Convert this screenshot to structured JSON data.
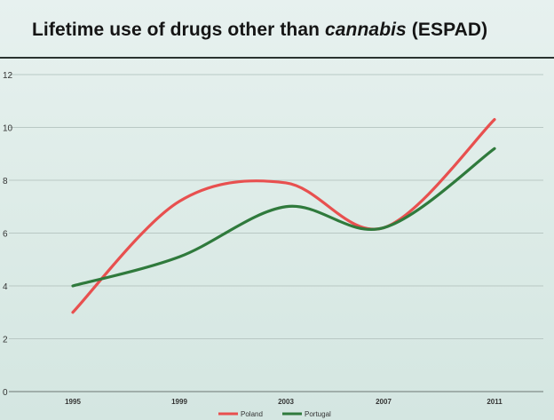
{
  "title": {
    "prefix": "Lifetime use of drugs other than ",
    "italic": "cannabis",
    "suffix": " (ESPAD)"
  },
  "chart_data": {
    "type": "line",
    "title": "Lifetime use of drugs other than cannabis (ESPAD)",
    "xlabel": "",
    "ylabel": "",
    "categories": [
      "1995",
      "1999",
      "2003",
      "2007",
      "2011"
    ],
    "x": [
      1995,
      1999,
      2003,
      2007,
      2011
    ],
    "y_tick_labels": [
      "0",
      "2",
      "4",
      "6",
      "8",
      "10",
      "12"
    ],
    "ylim": [
      0,
      12
    ],
    "grid": true,
    "legend_position": "bottom",
    "series": [
      {
        "name": "Poland",
        "color": "#e8504f",
        "values": [
          3.0,
          7.2,
          7.9,
          6.2,
          10.3
        ]
      },
      {
        "name": "Portugal",
        "color": "#2f7a3c",
        "values": [
          4.0,
          5.1,
          7.0,
          6.2,
          9.2
        ]
      }
    ]
  }
}
